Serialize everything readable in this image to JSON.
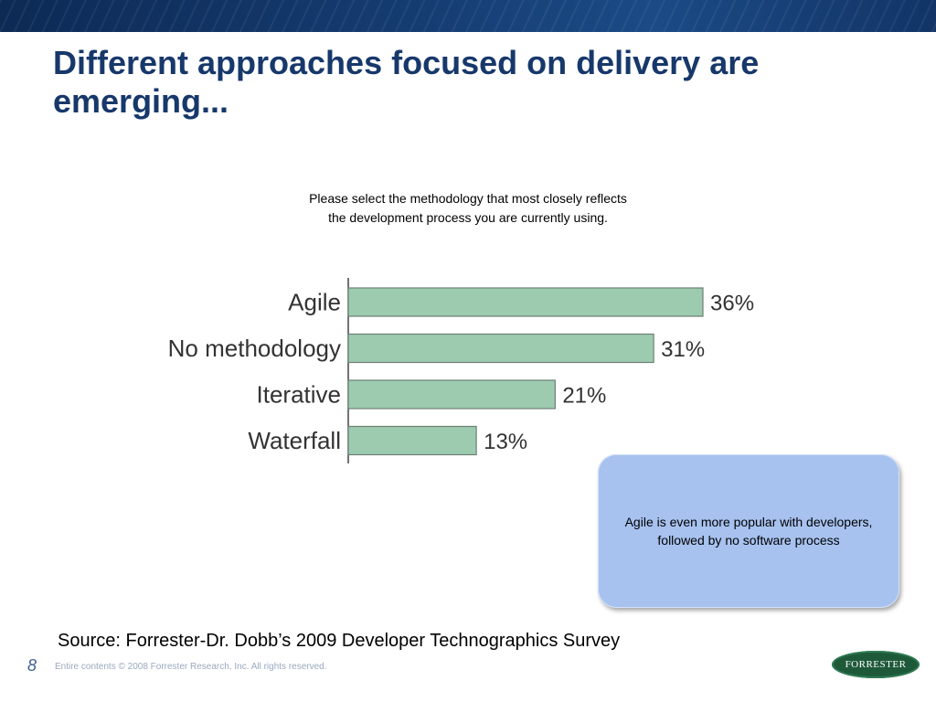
{
  "slide": {
    "title": "Different approaches focused on delivery are emerging...",
    "question_line1": "Please select the methodology that most closely reflects",
    "question_line2": "the development process you are currently using.",
    "callout": "Agile is even more popular  with developers, followed by no software process",
    "source": "Source: Forrester-Dr. Dobb’s 2009 Developer Technographics Survey",
    "page_number": "8",
    "copyright": "Entire contents © 2008  Forrester Research, Inc. All rights reserved.",
    "logo_text": "FORRESTER"
  },
  "chart_data": {
    "type": "bar",
    "orientation": "horizontal",
    "categories": [
      "Agile",
      "No methodology",
      "Iterative",
      "Waterfall"
    ],
    "values": [
      36,
      31,
      21,
      13
    ],
    "value_labels": [
      "36%",
      "31%",
      "21%",
      "13%"
    ],
    "title": "",
    "xlabel": "",
    "ylabel": "",
    "xlim": [
      0,
      36
    ],
    "grid": false,
    "legend": "none",
    "bar_color": "#9ccbb0",
    "bar_edge_color": "#6f7f74"
  }
}
